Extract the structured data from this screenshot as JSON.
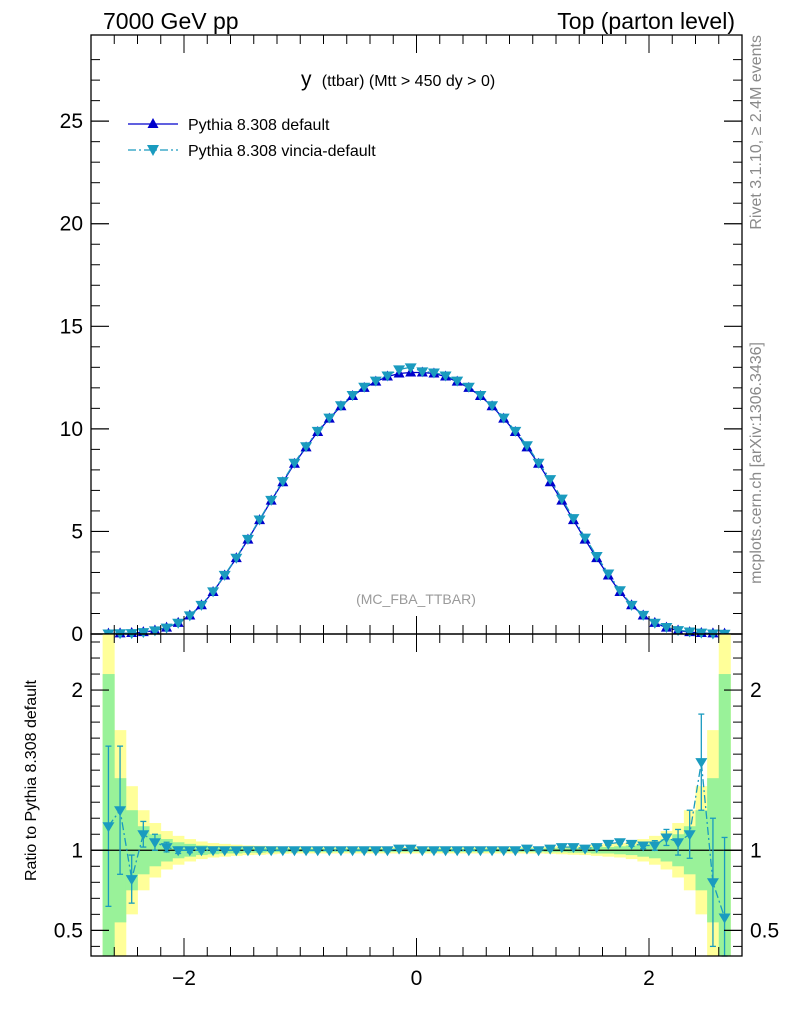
{
  "header": {
    "left": "7000 GeV pp",
    "right": "Top (parton level)"
  },
  "side_labels": {
    "rivet": "Rivet 3.1.10, ≥ 2.4M events",
    "mcplots": "mcplots.cern.ch [arXiv:1306.3436]"
  },
  "colors": {
    "default": "#0000cc",
    "vincia": "#1a9bbf",
    "band_green": "#99f299",
    "band_yellow": "#ffff99"
  },
  "chart_data": [
    {
      "type": "line",
      "title": "y (ttbar) (Mtt > 450 dy > 0)",
      "title_main": "y",
      "title_rest": "(ttbar) (Mtt > 450 dy > 0)",
      "annotation": "(MC_FBA_TTBAR)",
      "xlim": [
        -2.8,
        2.8
      ],
      "ylim": [
        0,
        29.2
      ],
      "y_ticks": [
        0,
        5,
        10,
        15,
        20,
        25
      ],
      "y_tick_labels": [
        "0",
        "5",
        "10",
        "15",
        "20",
        "25"
      ],
      "grid": false,
      "legend_position": "top-left",
      "x": [
        -2.65,
        -2.55,
        -2.45,
        -2.35,
        -2.25,
        -2.15,
        -2.05,
        -1.95,
        -1.85,
        -1.75,
        -1.65,
        -1.55,
        -1.45,
        -1.35,
        -1.25,
        -1.15,
        -1.05,
        -0.95,
        -0.85,
        -0.75,
        -0.65,
        -0.55,
        -0.45,
        -0.35,
        -0.25,
        -0.15,
        -0.05,
        0.05,
        0.15,
        0.25,
        0.35,
        0.45,
        0.55,
        0.65,
        0.75,
        0.85,
        0.95,
        1.05,
        1.15,
        1.25,
        1.35,
        1.45,
        1.55,
        1.65,
        1.75,
        1.85,
        1.95,
        2.05,
        2.15,
        2.25,
        2.35,
        2.45,
        2.55,
        2.65
      ],
      "series": [
        {
          "name": "Pythia 8.308 default",
          "values": [
            0.02,
            0.03,
            0.05,
            0.09,
            0.17,
            0.31,
            0.54,
            0.9,
            1.4,
            2.05,
            2.85,
            3.7,
            4.6,
            5.55,
            6.5,
            7.4,
            8.3,
            9.1,
            9.85,
            10.5,
            11.1,
            11.6,
            12.0,
            12.3,
            12.55,
            12.7,
            12.75,
            12.75,
            12.7,
            12.55,
            12.3,
            12.0,
            11.6,
            11.1,
            10.5,
            9.85,
            9.1,
            8.3,
            7.4,
            6.5,
            5.55,
            4.6,
            3.7,
            2.85,
            2.05,
            1.4,
            0.9,
            0.54,
            0.31,
            0.17,
            0.09,
            0.05,
            0.03,
            0.02
          ]
        },
        {
          "name": "Pythia 8.308 vincia-default",
          "values": [
            0.023,
            0.037,
            0.042,
            0.094,
            0.175,
            0.31,
            0.55,
            0.91,
            1.42,
            2.08,
            2.88,
            3.72,
            4.64,
            5.58,
            6.54,
            7.45,
            8.35,
            9.15,
            9.9,
            10.55,
            11.15,
            11.65,
            12.05,
            12.35,
            12.6,
            12.9,
            13.0,
            12.8,
            12.75,
            12.6,
            12.35,
            12.05,
            11.65,
            11.15,
            10.55,
            9.9,
            9.2,
            8.35,
            7.55,
            6.6,
            5.65,
            4.7,
            3.8,
            2.95,
            2.13,
            1.42,
            0.93,
            0.55,
            0.34,
            0.19,
            0.12,
            0.07,
            0.025,
            0.012
          ]
        }
      ]
    },
    {
      "type": "line",
      "title": "",
      "ylabel": "Ratio to Pythia 8.308 default",
      "xlim": [
        -2.8,
        2.8
      ],
      "ylim": [
        0.34,
        2.35
      ],
      "x_ticks": [
        -2,
        0,
        2
      ],
      "x_tick_labels": [
        "−2",
        "0",
        "2"
      ],
      "y_ticks": [
        0.5,
        1,
        2
      ],
      "y_tick_labels": [
        "0.5",
        "1",
        "2"
      ],
      "band_widths": {
        "green": [
          1.1,
          0.45,
          0.25,
          0.15,
          0.1,
          0.07,
          0.05,
          0.04,
          0.03,
          0.025,
          0.02,
          0.02,
          0.015,
          0.015,
          0.012,
          0.012,
          0.01,
          0.01,
          0.01,
          0.01,
          0.01,
          0.01,
          0.01,
          0.01,
          0.01,
          0.01,
          0.01,
          0.01,
          0.01,
          0.01,
          0.01,
          0.01,
          0.01,
          0.01,
          0.01,
          0.01,
          0.01,
          0.01,
          0.012,
          0.012,
          0.015,
          0.015,
          0.02,
          0.02,
          0.025,
          0.03,
          0.04,
          0.05,
          0.07,
          0.1,
          0.15,
          0.25,
          0.45,
          1.1
        ],
        "yellow": [
          1.6,
          0.75,
          0.4,
          0.25,
          0.17,
          0.12,
          0.09,
          0.07,
          0.055,
          0.045,
          0.04,
          0.035,
          0.03,
          0.028,
          0.025,
          0.022,
          0.02,
          0.02,
          0.02,
          0.02,
          0.02,
          0.02,
          0.02,
          0.02,
          0.02,
          0.02,
          0.02,
          0.02,
          0.02,
          0.02,
          0.02,
          0.02,
          0.02,
          0.02,
          0.02,
          0.02,
          0.02,
          0.02,
          0.022,
          0.025,
          0.028,
          0.03,
          0.035,
          0.04,
          0.045,
          0.055,
          0.07,
          0.09,
          0.12,
          0.17,
          0.25,
          0.4,
          0.75,
          1.6
        ]
      },
      "series": [
        {
          "name": "Pythia 8.308 vincia-default",
          "values": [
            1.15,
            1.25,
            0.82,
            1.1,
            1.05,
            1.02,
            1.0,
            1.0,
            1.0,
            1.0,
            1.0,
            1.0,
            1.0,
            1.0,
            1.0,
            1.0,
            1.0,
            1.0,
            1.0,
            1.0,
            1.0,
            1.0,
            1.0,
            1.0,
            1.0,
            1.01,
            1.01,
            1.0,
            1.0,
            1.0,
            1.0,
            1.0,
            1.0,
            1.0,
            1.0,
            1.0,
            1.01,
            1.0,
            1.01,
            1.02,
            1.02,
            1.01,
            1.02,
            1.04,
            1.05,
            1.04,
            1.03,
            1.03,
            1.08,
            1.05,
            1.1,
            1.55,
            0.8,
            0.58
          ],
          "errors": [
            0.5,
            0.4,
            0.15,
            0.08,
            0.05,
            0.03,
            0.02,
            0.015,
            0.01,
            0.01,
            0.01,
            0.01,
            0.01,
            0.01,
            0.01,
            0.01,
            0.01,
            0.01,
            0.01,
            0.01,
            0.01,
            0.01,
            0.01,
            0.01,
            0.01,
            0.01,
            0.01,
            0.01,
            0.01,
            0.01,
            0.01,
            0.01,
            0.01,
            0.01,
            0.01,
            0.01,
            0.01,
            0.01,
            0.01,
            0.01,
            0.01,
            0.01,
            0.01,
            0.01,
            0.01,
            0.015,
            0.02,
            0.03,
            0.05,
            0.08,
            0.15,
            0.3,
            0.4,
            0.5
          ]
        }
      ]
    }
  ]
}
